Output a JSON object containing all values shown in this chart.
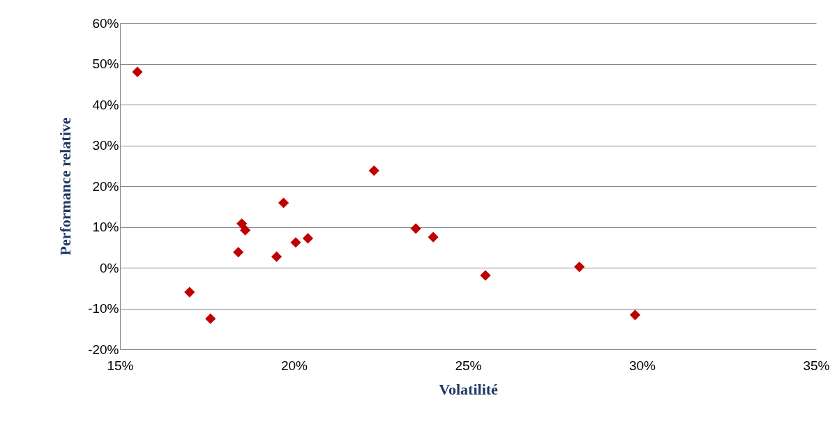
{
  "chart_data": {
    "type": "scatter",
    "xlabel": "Volatilité",
    "ylabel": "Performance relative",
    "x": [
      15.5,
      17.0,
      17.6,
      18.4,
      18.5,
      18.6,
      19.5,
      19.7,
      20.05,
      20.4,
      22.3,
      23.5,
      24.0,
      25.5,
      28.2,
      29.8
    ],
    "series": [
      {
        "color": "#c00000",
        "values": [
          48,
          -6,
          -12.5,
          3.8,
          10.8,
          9.2,
          2.7,
          15.9,
          6.2,
          7.2,
          23.8,
          9.6,
          7.5,
          -1.9,
          0.2,
          -11.6
        ]
      }
    ],
    "xlim": [
      15,
      35
    ],
    "xticks": [
      {
        "value": 15,
        "label": "15%"
      },
      {
        "value": 20,
        "label": "20%"
      },
      {
        "value": 25,
        "label": "25%"
      },
      {
        "value": 30,
        "label": "30%"
      },
      {
        "value": 35,
        "label": "35%"
      }
    ],
    "ylim": [
      -20,
      60
    ],
    "yticks": [
      {
        "value": -20,
        "label": "-20%"
      },
      {
        "value": -10,
        "label": "-10%"
      },
      {
        "value": 0,
        "label": "0%"
      },
      {
        "value": 10,
        "label": "10%"
      },
      {
        "value": 20,
        "label": "20%"
      },
      {
        "value": 30,
        "label": "30%"
      },
      {
        "value": 40,
        "label": "40%"
      },
      {
        "value": 50,
        "label": "50%"
      },
      {
        "value": 60,
        "label": "60%"
      }
    ],
    "grid": "y",
    "marker": "diamond"
  }
}
